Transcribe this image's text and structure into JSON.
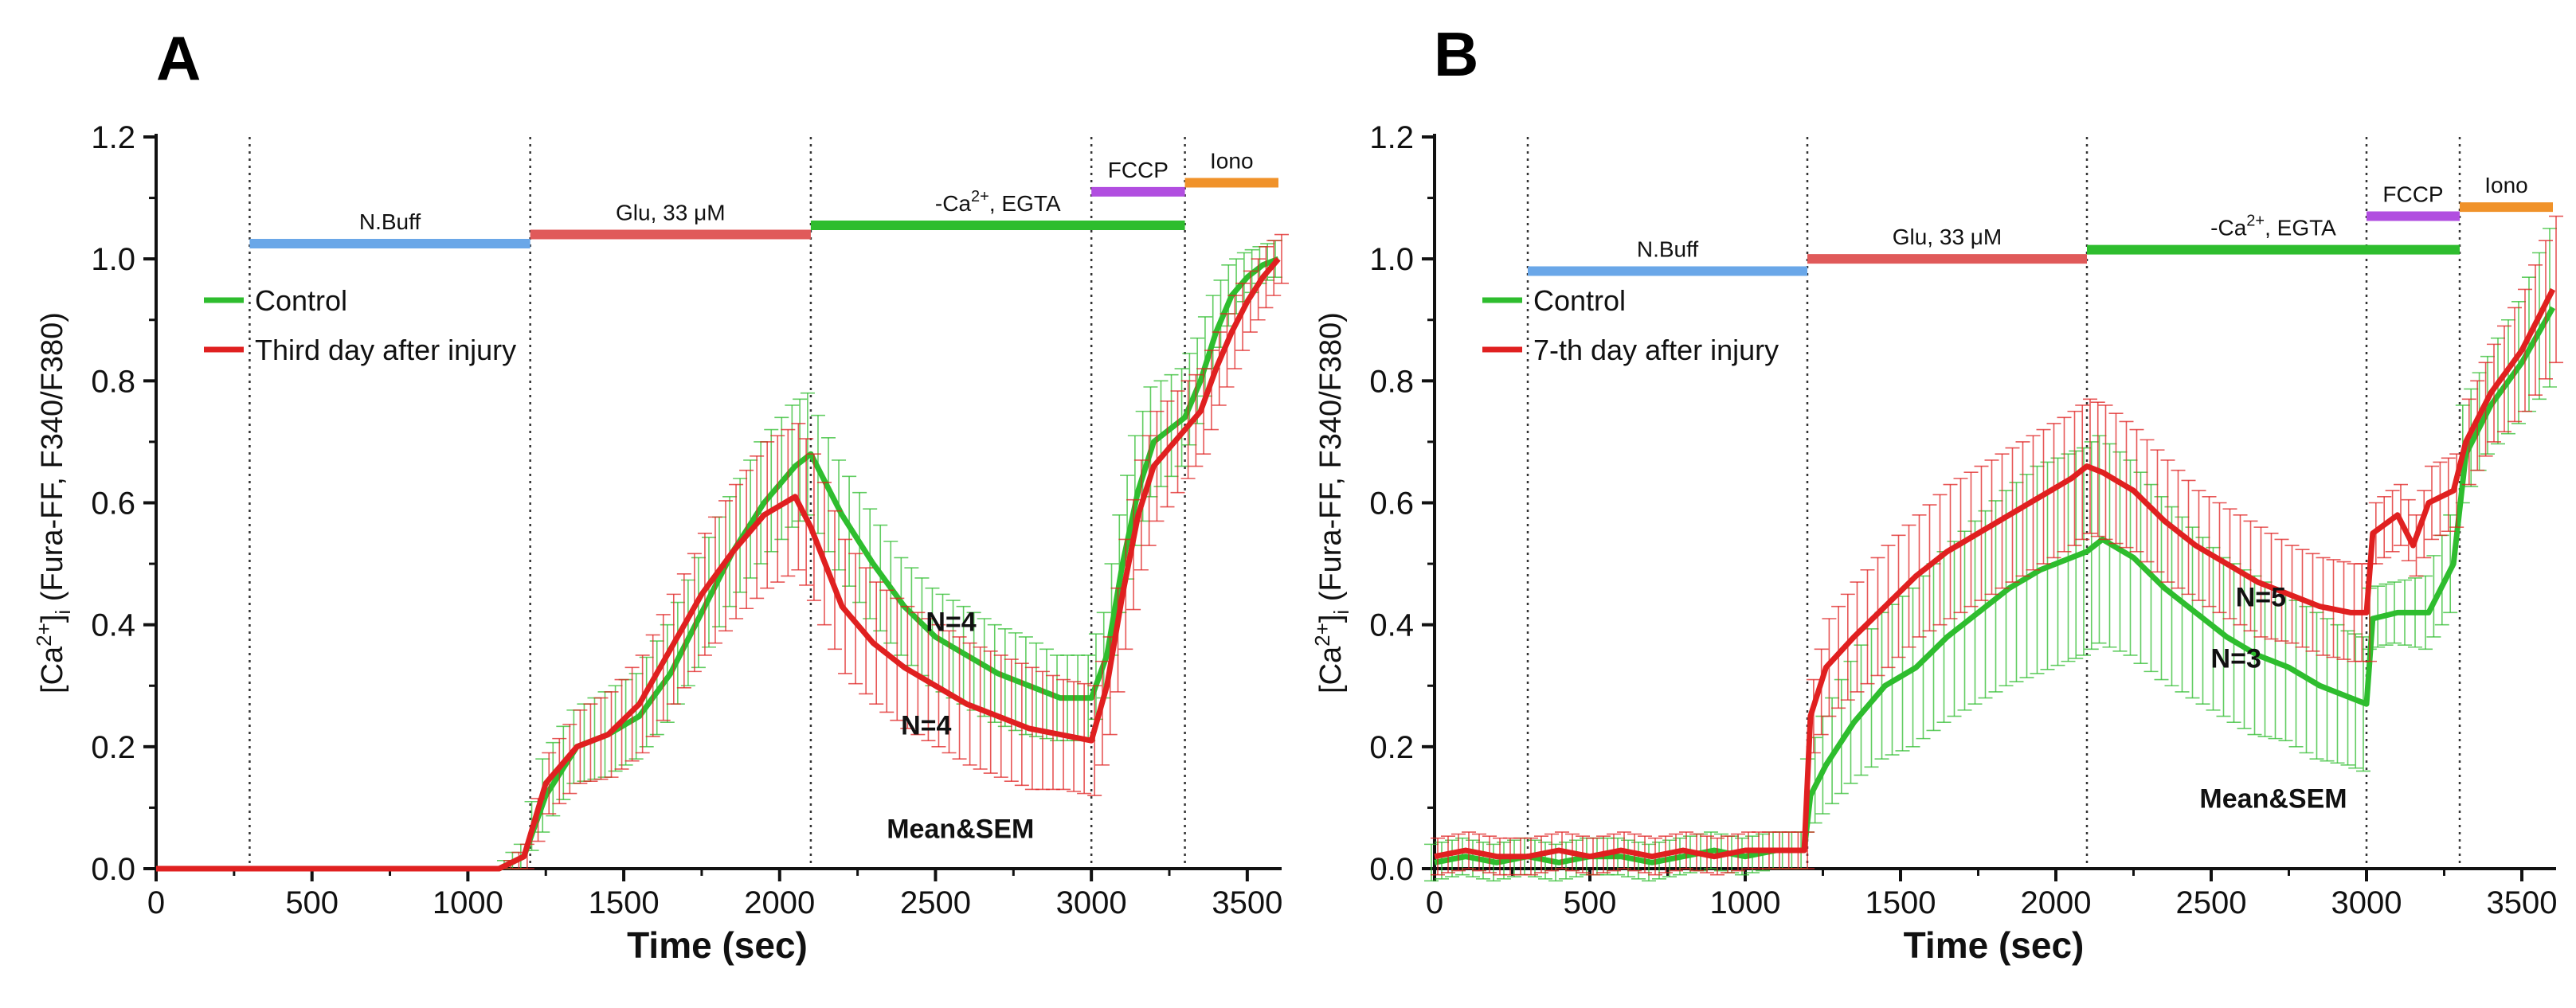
{
  "chart_data": [
    {
      "type": "line",
      "panel_label": "A",
      "xlabel": "Time (sec)",
      "ylabel": {
        "pre": "[Ca",
        "sup": "2+",
        "mid": "]",
        "sub": "i",
        "post": " (Fura-FF, F340/F380)"
      },
      "xlim": [
        0,
        3600
      ],
      "ylim": [
        0,
        1.2
      ],
      "xticks": [
        0,
        500,
        1000,
        1500,
        2000,
        2500,
        3000,
        3500
      ],
      "yticks": [
        0.0,
        0.2,
        0.4,
        0.6,
        0.8,
        1.0,
        1.2
      ],
      "ytick_labels": [
        "0.0",
        "0.2",
        "0.4",
        "0.6",
        "0.8",
        "1.0",
        "1.2"
      ],
      "phase_lines": [
        300,
        1200,
        2100,
        3000,
        3300
      ],
      "treatments": [
        {
          "label": "N.Buff",
          "start": 300,
          "end": 1200,
          "y": 1.025,
          "color": "#6aa7e8"
        },
        {
          "label": "Glu, 33 μM",
          "start": 1200,
          "end": 2100,
          "y": 1.04,
          "color": "#e05a5a"
        },
        {
          "label": "-Ca2+, EGTA",
          "start": 2100,
          "end": 3300,
          "y": 1.055,
          "color": "#2ebd2e",
          "rich": true
        },
        {
          "label": "FCCP",
          "start": 3000,
          "end": 3300,
          "y": 1.11,
          "color": "#b14ee0"
        },
        {
          "label": "Iono",
          "start": 3300,
          "end": 3600,
          "y": 1.125,
          "color": "#f0922a"
        }
      ],
      "series": [
        {
          "name": "Control",
          "color": "#2ebd2e",
          "x": [
            0,
            1100,
            1180,
            1250,
            1350,
            1450,
            1550,
            1650,
            1750,
            1850,
            1950,
            2050,
            2100,
            2200,
            2300,
            2400,
            2500,
            2600,
            2700,
            2800,
            2900,
            3000,
            3050,
            3100,
            3150,
            3200,
            3300,
            3350,
            3400,
            3450,
            3500,
            3550,
            3600
          ],
          "y": [
            0.0,
            0.0,
            0.02,
            0.12,
            0.2,
            0.22,
            0.25,
            0.32,
            0.42,
            0.52,
            0.6,
            0.66,
            0.68,
            0.58,
            0.5,
            0.43,
            0.38,
            0.35,
            0.32,
            0.3,
            0.28,
            0.28,
            0.35,
            0.5,
            0.62,
            0.7,
            0.74,
            0.8,
            0.88,
            0.94,
            0.97,
            0.99,
            1.0
          ],
          "err": [
            0.0,
            0.0,
            0.02,
            0.06,
            0.06,
            0.07,
            0.07,
            0.08,
            0.09,
            0.09,
            0.1,
            0.1,
            0.1,
            0.09,
            0.09,
            0.08,
            0.08,
            0.08,
            0.08,
            0.08,
            0.07,
            0.07,
            0.07,
            0.08,
            0.09,
            0.09,
            0.08,
            0.07,
            0.06,
            0.05,
            0.04,
            0.03,
            0.03
          ]
        },
        {
          "name": "Third day after injury",
          "color": "#e02020",
          "x": [
            0,
            1100,
            1180,
            1250,
            1350,
            1450,
            1550,
            1650,
            1750,
            1850,
            1950,
            2050,
            2100,
            2200,
            2300,
            2400,
            2500,
            2600,
            2700,
            2800,
            2900,
            3000,
            3050,
            3100,
            3150,
            3200,
            3300,
            3350,
            3400,
            3450,
            3500,
            3550,
            3600
          ],
          "y": [
            0.0,
            0.0,
            0.02,
            0.14,
            0.2,
            0.22,
            0.27,
            0.36,
            0.45,
            0.52,
            0.58,
            0.61,
            0.56,
            0.43,
            0.37,
            0.33,
            0.3,
            0.27,
            0.25,
            0.23,
            0.22,
            0.21,
            0.3,
            0.45,
            0.58,
            0.66,
            0.72,
            0.75,
            0.82,
            0.88,
            0.93,
            0.97,
            1.0
          ],
          "err": [
            0.0,
            0.0,
            0.02,
            0.05,
            0.06,
            0.07,
            0.08,
            0.09,
            0.1,
            0.11,
            0.12,
            0.12,
            0.12,
            0.11,
            0.1,
            0.1,
            0.1,
            0.1,
            0.1,
            0.1,
            0.09,
            0.09,
            0.08,
            0.09,
            0.09,
            0.09,
            0.08,
            0.07,
            0.06,
            0.06,
            0.05,
            0.05,
            0.04
          ]
        }
      ],
      "legend": {
        "position": "top-left"
      },
      "annotations": [
        {
          "text": "N=4",
          "x": 2550,
          "y": 0.39
        },
        {
          "text": "N=4",
          "x": 2470,
          "y": 0.22
        },
        {
          "text": "Mean&SEM",
          "x": 2580,
          "y": 0.05
        }
      ]
    },
    {
      "type": "line",
      "panel_label": "B",
      "xlabel": "Time (sec)",
      "ylabel": {
        "pre": "[Ca",
        "sup": "2+",
        "mid": "]",
        "sub": "i",
        "post": " (Fura-FF, F340/F380)"
      },
      "xlim": [
        0,
        3600
      ],
      "ylim": [
        0,
        1.2
      ],
      "xticks": [
        0,
        500,
        1000,
        1500,
        2000,
        2500,
        3000,
        3500
      ],
      "yticks": [
        0.0,
        0.2,
        0.4,
        0.6,
        0.8,
        1.0,
        1.2
      ],
      "ytick_labels": [
        "0.0",
        "0.2",
        "0.4",
        "0.6",
        "0.8",
        "1.0",
        "1.2"
      ],
      "phase_lines": [
        300,
        1200,
        2100,
        3000,
        3300
      ],
      "treatments": [
        {
          "label": "N.Buff",
          "start": 300,
          "end": 1200,
          "y": 0.98,
          "color": "#6aa7e8"
        },
        {
          "label": "Glu, 33 μM",
          "start": 1200,
          "end": 2100,
          "y": 1.0,
          "color": "#e05a5a"
        },
        {
          "label": "-Ca2+, EGTA",
          "start": 2100,
          "end": 3300,
          "y": 1.015,
          "color": "#2ebd2e",
          "rich": true
        },
        {
          "label": "FCCP",
          "start": 3000,
          "end": 3300,
          "y": 1.07,
          "color": "#b14ee0"
        },
        {
          "label": "Iono",
          "start": 3300,
          "end": 3600,
          "y": 1.085,
          "color": "#f0922a"
        }
      ],
      "series": [
        {
          "name": "Control",
          "color": "#2ebd2e",
          "x": [
            0,
            100,
            200,
            300,
            400,
            500,
            600,
            700,
            800,
            900,
            1000,
            1100,
            1190,
            1210,
            1260,
            1350,
            1450,
            1550,
            1650,
            1750,
            1850,
            1950,
            2050,
            2100,
            2150,
            2250,
            2350,
            2450,
            2550,
            2650,
            2750,
            2850,
            2950,
            3000,
            3020,
            3100,
            3200,
            3280,
            3320,
            3400,
            3500,
            3600
          ],
          "y": [
            0.01,
            0.02,
            0.01,
            0.02,
            0.01,
            0.02,
            0.02,
            0.01,
            0.02,
            0.03,
            0.02,
            0.03,
            0.03,
            0.12,
            0.17,
            0.24,
            0.3,
            0.33,
            0.38,
            0.42,
            0.46,
            0.49,
            0.51,
            0.52,
            0.54,
            0.51,
            0.46,
            0.42,
            0.38,
            0.35,
            0.33,
            0.3,
            0.28,
            0.27,
            0.41,
            0.42,
            0.42,
            0.5,
            0.68,
            0.76,
            0.83,
            0.92
          ],
          "err": [
            0.03,
            0.03,
            0.03,
            0.03,
            0.03,
            0.03,
            0.03,
            0.03,
            0.03,
            0.03,
            0.03,
            0.03,
            0.03,
            0.06,
            0.08,
            0.1,
            0.12,
            0.13,
            0.14,
            0.15,
            0.16,
            0.17,
            0.17,
            0.17,
            0.17,
            0.16,
            0.15,
            0.14,
            0.13,
            0.13,
            0.12,
            0.12,
            0.11,
            0.11,
            0.05,
            0.05,
            0.06,
            0.08,
            0.08,
            0.08,
            0.1,
            0.13
          ]
        },
        {
          "name": "7-th day after injury",
          "color": "#e02020",
          "x": [
            0,
            100,
            200,
            300,
            400,
            500,
            600,
            700,
            800,
            900,
            1000,
            1100,
            1190,
            1210,
            1260,
            1350,
            1450,
            1550,
            1650,
            1750,
            1850,
            1950,
            2050,
            2100,
            2150,
            2250,
            2350,
            2450,
            2550,
            2650,
            2750,
            2850,
            2950,
            3000,
            3020,
            3100,
            3150,
            3200,
            3280,
            3320,
            3400,
            3500,
            3600
          ],
          "y": [
            0.02,
            0.03,
            0.02,
            0.02,
            0.03,
            0.02,
            0.03,
            0.02,
            0.03,
            0.02,
            0.03,
            0.03,
            0.03,
            0.25,
            0.33,
            0.38,
            0.43,
            0.48,
            0.52,
            0.55,
            0.58,
            0.61,
            0.64,
            0.66,
            0.65,
            0.62,
            0.57,
            0.53,
            0.5,
            0.47,
            0.45,
            0.43,
            0.42,
            0.42,
            0.55,
            0.58,
            0.53,
            0.6,
            0.62,
            0.7,
            0.78,
            0.85,
            0.95
          ],
          "err": [
            0.03,
            0.03,
            0.03,
            0.03,
            0.03,
            0.03,
            0.03,
            0.03,
            0.03,
            0.03,
            0.03,
            0.03,
            0.03,
            0.06,
            0.08,
            0.09,
            0.1,
            0.1,
            0.11,
            0.11,
            0.11,
            0.11,
            0.11,
            0.11,
            0.11,
            0.1,
            0.1,
            0.09,
            0.09,
            0.09,
            0.08,
            0.08,
            0.08,
            0.08,
            0.05,
            0.05,
            0.05,
            0.06,
            0.06,
            0.07,
            0.08,
            0.1,
            0.12
          ]
        }
      ],
      "legend": {
        "position": "top-left"
      },
      "annotations": [
        {
          "text": "N=5",
          "x": 2660,
          "y": 0.43
        },
        {
          "text": "N=3",
          "x": 2580,
          "y": 0.33
        },
        {
          "text": "Mean&SEM",
          "x": 2700,
          "y": 0.1
        }
      ]
    }
  ]
}
